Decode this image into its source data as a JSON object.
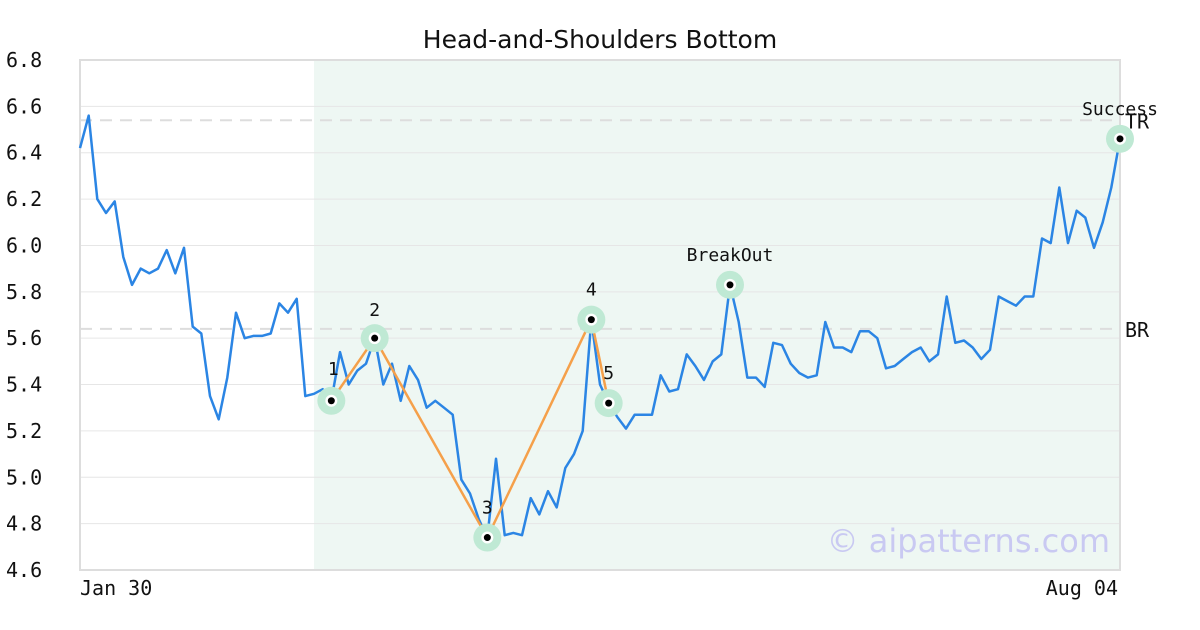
{
  "chart_data": {
    "type": "line",
    "title": "Head-and-Shoulders Bottom",
    "xlabel": "",
    "ylabel": "",
    "x_tick_labels": [
      "Jan 30",
      "Aug 04"
    ],
    "ylim": [
      4.6,
      6.8
    ],
    "y_ticks": [
      4.6,
      4.8,
      5.0,
      5.2,
      5.4,
      5.6,
      5.8,
      6.0,
      6.2,
      6.4,
      6.6,
      6.8
    ],
    "y_tick_labels": [
      "4.6",
      "4.8",
      "5.0",
      "5.2",
      "5.4",
      "5.6",
      "5.8",
      "6.0",
      "6.2",
      "6.4",
      "6.6",
      "6.8"
    ],
    "grid": true,
    "series": [
      {
        "values": [
          6.42,
          6.56,
          6.2,
          6.14,
          6.19,
          5.95,
          5.83,
          5.9,
          5.88,
          5.9,
          5.98,
          5.88,
          5.99,
          5.65,
          5.62,
          5.35,
          5.25,
          5.43,
          5.71,
          5.6,
          5.61,
          5.61,
          5.62,
          5.75,
          5.71,
          5.77,
          5.35,
          5.36,
          5.38,
          5.33,
          5.54,
          5.4,
          5.46,
          5.49,
          5.6,
          5.4,
          5.49,
          5.33,
          5.48,
          5.42,
          5.3,
          5.33,
          5.3,
          5.27,
          4.99,
          4.93,
          4.82,
          4.74,
          5.08,
          4.75,
          4.76,
          4.75,
          4.91,
          4.84,
          4.94,
          4.87,
          5.04,
          5.1,
          5.2,
          5.68,
          5.4,
          5.32,
          5.26,
          5.21,
          5.27,
          5.27,
          5.27,
          5.44,
          5.37,
          5.38,
          5.53,
          5.48,
          5.42,
          5.5,
          5.53,
          5.83,
          5.67,
          5.43,
          5.43,
          5.39,
          5.58,
          5.57,
          5.49,
          5.45,
          5.43,
          5.44,
          5.67,
          5.56,
          5.56,
          5.54,
          5.63,
          5.63,
          5.6,
          5.47,
          5.48,
          5.51,
          5.54,
          5.56,
          5.5,
          5.53,
          5.78,
          5.58,
          5.59,
          5.56,
          5.51,
          5.55,
          5.78,
          5.76,
          5.74,
          5.78,
          5.78,
          6.03,
          6.01,
          6.25,
          6.01,
          6.15,
          6.12,
          5.99,
          6.1,
          6.25,
          6.46
        ]
      }
    ],
    "pattern_points": [
      {
        "label": "1",
        "index": 29,
        "value": 5.33
      },
      {
        "label": "2",
        "index": 34,
        "value": 5.6
      },
      {
        "label": "3",
        "index": 47,
        "value": 4.74
      },
      {
        "label": "4",
        "index": 59,
        "value": 5.68
      },
      {
        "label": "5",
        "index": 61,
        "value": 5.32
      }
    ],
    "annotations": [
      {
        "label": "BreakOut",
        "index": 75,
        "value": 5.83
      },
      {
        "label": "Success",
        "index": 120,
        "value": 6.46
      }
    ],
    "reference_lines": [
      {
        "label": "TR",
        "value": 6.54
      },
      {
        "label": "BR",
        "value": 5.64
      }
    ],
    "highlight_range": {
      "start_index": 27,
      "end_index": 120
    },
    "watermark": "© aipatterns.com",
    "colors": {
      "price_line": "#2b85e4",
      "pattern_line": "#f5a04a",
      "highlight": "#eef7f3",
      "marker_halo": "#bfe9d4",
      "reference_line": "#dddddd",
      "grid": "#e6e6e6",
      "frame": "#dddddd",
      "watermark": "#c9c9f2"
    }
  }
}
